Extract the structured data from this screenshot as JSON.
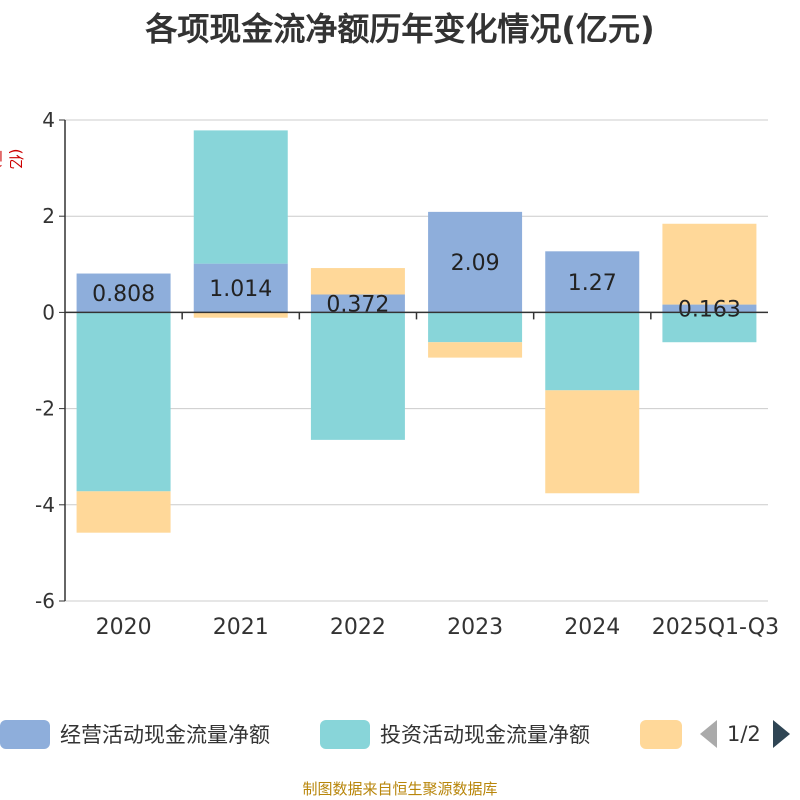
{
  "chart_data": {
    "type": "bar",
    "stacked": true,
    "title": "各项现金流净额历年变化情况(亿元)",
    "ylabel": "(亿元)",
    "ylim": [
      -6,
      4
    ],
    "yticks": [
      4,
      2,
      0,
      -2,
      -4,
      -6
    ],
    "categories": [
      "2020",
      "2021",
      "2022",
      "2023",
      "2024",
      "2025Q1-Q3"
    ],
    "series": [
      {
        "name": "经营活动现金流量净额",
        "color": "#8eaedb",
        "values": [
          0.808,
          1.014,
          0.372,
          2.09,
          1.27,
          0.163
        ],
        "labels": [
          "0.808",
          "1.014",
          "0.372",
          "2.09",
          "1.27",
          "0.163"
        ]
      },
      {
        "name": "投资活动现金流量净额",
        "color": "#88d5d9",
        "values": [
          -3.72,
          2.77,
          -2.65,
          -0.62,
          -1.62,
          -0.62
        ]
      },
      {
        "name": "",
        "color": "#ffd899",
        "values": [
          -0.86,
          -0.11,
          0.55,
          -0.32,
          -2.14,
          1.68
        ]
      }
    ],
    "legend_position": "bottom",
    "pager": "1/2",
    "source": "制图数据来自恒生聚源数据库"
  }
}
